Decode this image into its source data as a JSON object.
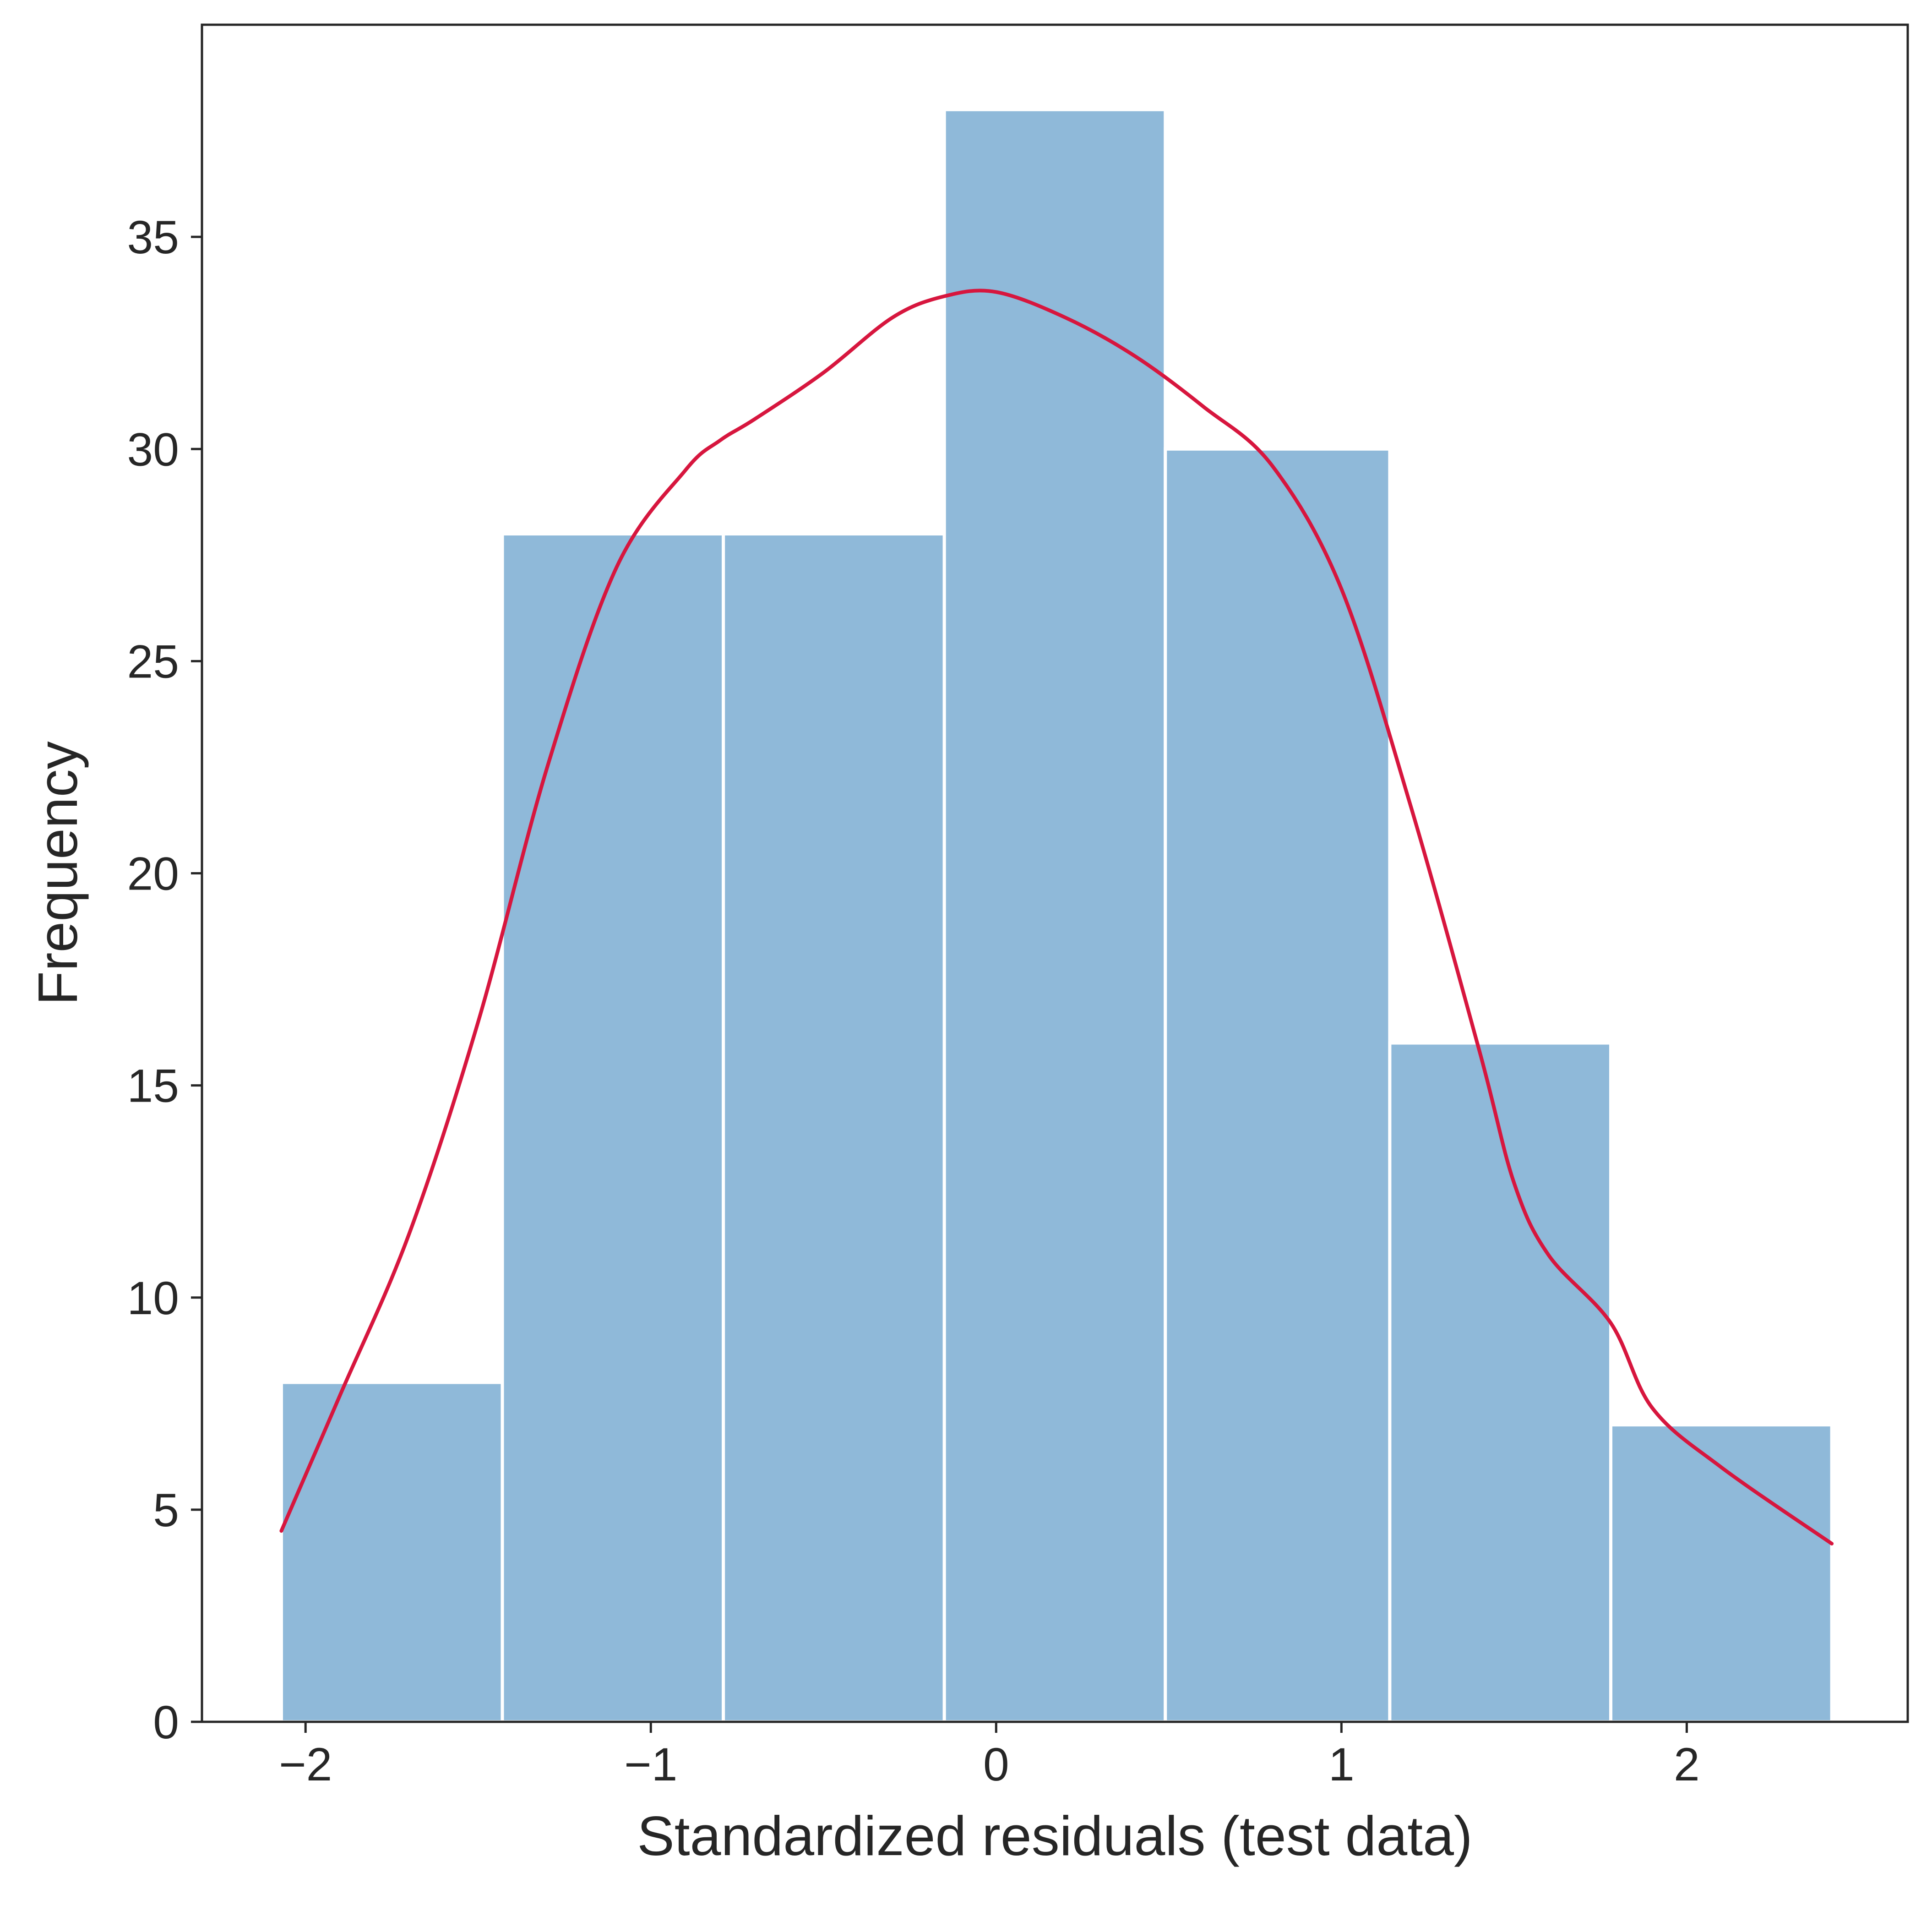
{
  "chart_data": {
    "type": "bar",
    "subtype": "histogram-with-density-curve",
    "title": "",
    "xlabel": "Standardized residuals (test data)",
    "ylabel": "Frequency",
    "xlim": [
      -2.3,
      2.64
    ],
    "ylim": [
      0,
      40
    ],
    "xticks": [
      -2,
      -1,
      0,
      1,
      2
    ],
    "xtick_labels": [
      "−2",
      "−1",
      "0",
      "1",
      "2"
    ],
    "yticks": [
      0,
      5,
      10,
      15,
      20,
      25,
      30,
      35
    ],
    "ytick_labels": [
      "0",
      "5",
      "10",
      "15",
      "20",
      "25",
      "30",
      "35"
    ],
    "grid": false,
    "legend": "none",
    "bins": [
      {
        "x0": -2.07,
        "x1": -1.43,
        "count": 8
      },
      {
        "x0": -1.43,
        "x1": -0.79,
        "count": 28
      },
      {
        "x0": -0.79,
        "x1": -0.15,
        "count": 28
      },
      {
        "x0": -0.15,
        "x1": 0.49,
        "count": 38
      },
      {
        "x0": 0.49,
        "x1": 1.14,
        "count": 30
      },
      {
        "x0": 1.14,
        "x1": 1.78,
        "count": 16
      },
      {
        "x0": 1.78,
        "x1": 2.42,
        "count": 7
      }
    ],
    "kde_curve": {
      "x": [
        -2.07,
        -1.9,
        -1.7,
        -1.5,
        -1.3,
        -1.1,
        -0.9,
        -0.8,
        -0.7,
        -0.5,
        -0.3,
        -0.15,
        0.0,
        0.2,
        0.4,
        0.6,
        0.8,
        1.0,
        1.2,
        1.4,
        1.5,
        1.6,
        1.78,
        1.9,
        2.1,
        2.42
      ],
      "y": [
        4.5,
        7.7,
        11.5,
        16.5,
        22.5,
        27.2,
        29.5,
        30.2,
        30.7,
        31.8,
        33.1,
        33.6,
        33.7,
        33.1,
        32.2,
        31.0,
        29.6,
        26.7,
        21.6,
        15.8,
        12.7,
        11.0,
        9.4,
        7.4,
        6.0,
        4.2
      ]
    },
    "colors": {
      "bar_fill": "#8fb9d9",
      "bar_edge": "#ffffff",
      "curve": "#d7163e",
      "axis": "#262626",
      "text": "#262626"
    }
  }
}
